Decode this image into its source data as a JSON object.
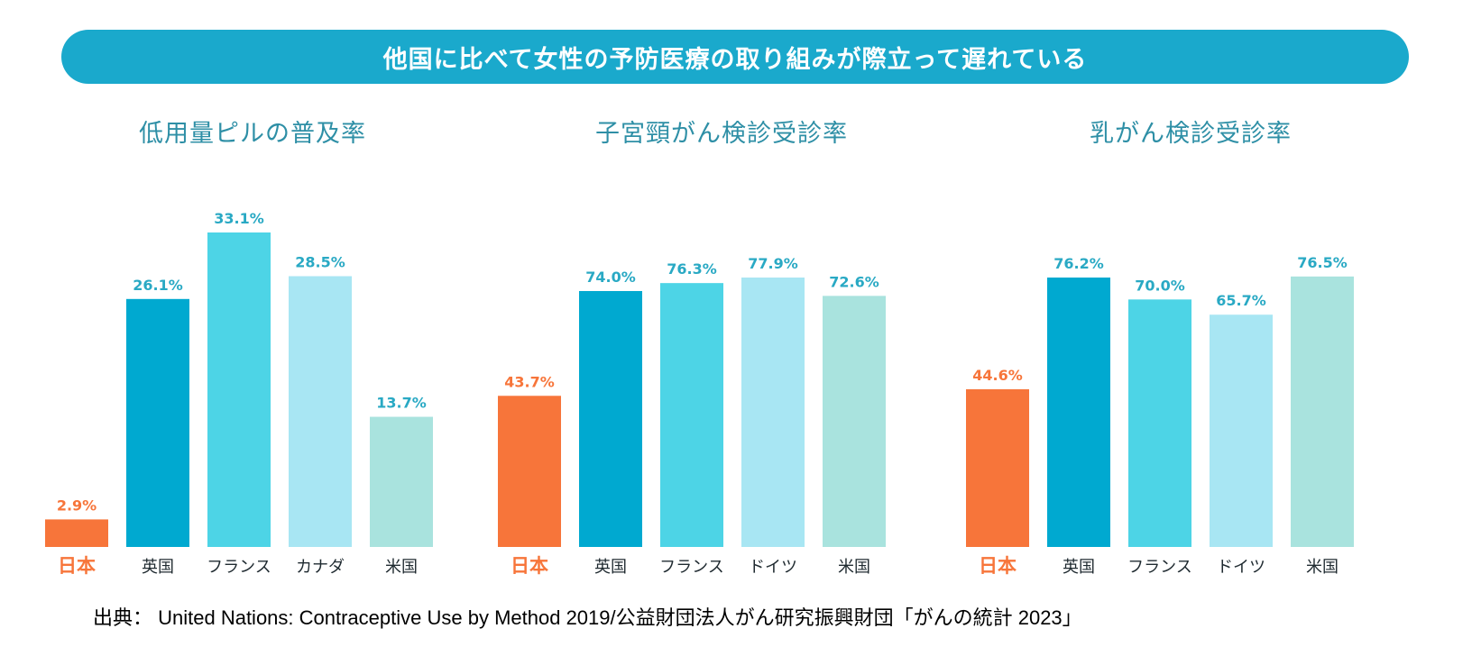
{
  "banner": {
    "text": "他国に比べて女性の予防医療の取り組みが際立って遅れている",
    "color": "#1aa9cc"
  },
  "source": "出典： United Nations: Contraceptive Use by Method 2019/公益財団法人がん研究振興財団「がんの統計 2023」",
  "colors": {
    "japan": "#f7753a",
    "series": [
      "#00a9d0",
      "#4dd4e6",
      "#a8e6f3",
      "#a9e3de"
    ],
    "japan_label": "#f7753a",
    "value_label": "#29a9c4",
    "category_label": "#1f2a30"
  },
  "chart_data": [
    {
      "type": "bar",
      "title": "低用量ピルの普及率",
      "categories": [
        "日本",
        "英国",
        "フランス",
        "カナダ",
        "米国"
      ],
      "values": [
        2.9,
        26.1,
        33.1,
        28.5,
        13.7
      ],
      "labels": [
        "2.9%",
        "26.1%",
        "33.1%",
        "28.5%",
        "13.7%"
      ],
      "ylim": [
        0,
        33.1
      ]
    },
    {
      "type": "bar",
      "title": "子宮頸がん検診受診率",
      "categories": [
        "日本",
        "英国",
        "フランス",
        "ドイツ",
        "米国"
      ],
      "values": [
        43.7,
        74.0,
        76.3,
        77.9,
        72.6
      ],
      "labels": [
        "43.7%",
        "74.0%",
        "76.3%",
        "77.9%",
        "72.6%"
      ],
      "ylim": [
        0,
        85.2
      ]
    },
    {
      "type": "bar",
      "title": "乳がん検診受診率",
      "categories": [
        "日本",
        "英国",
        "フランス",
        "ドイツ",
        "米国"
      ],
      "values": [
        44.6,
        76.2,
        70.0,
        65.7,
        76.5
      ],
      "labels": [
        "44.6%",
        "76.2%",
        "70.0%",
        "65.7%",
        "76.5%"
      ],
      "ylim": [
        0,
        86.4
      ]
    }
  ]
}
